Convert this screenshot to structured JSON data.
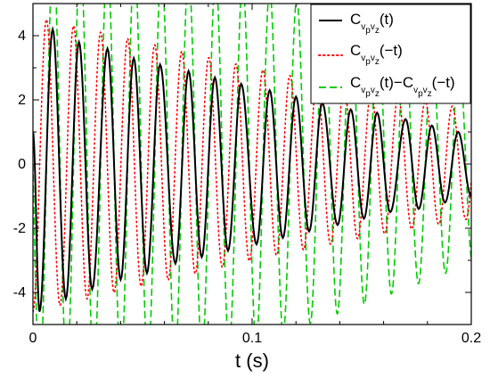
{
  "chart_data": {
    "type": "line",
    "xlabel": "t (s)",
    "ylabel": "",
    "xlim": [
      0,
      0.2
    ],
    "ylim": [
      -5,
      5
    ],
    "x_ticks": [
      0,
      0.1,
      0.2
    ],
    "x_tick_labels": [
      "0",
      "0.1",
      "0.2"
    ],
    "y_ticks": [
      -4,
      -2,
      0,
      2,
      4
    ],
    "y_tick_labels": [
      "-4",
      "-2",
      "0",
      "2",
      "4"
    ],
    "grid": false,
    "legend_position": "top-right",
    "legend": [
      {
        "main": "C",
        "sub": "v",
        "sub2": "p",
        "sub3": "v",
        "sub4": "z",
        "arg": "(t)"
      },
      {
        "main": "C",
        "sub": "v",
        "sub2": "p",
        "sub3": "v",
        "sub4": "z",
        "arg": "(−t)"
      },
      {
        "main": "C",
        "sub": "v",
        "sub2": "p",
        "sub3": "v",
        "sub4": "z",
        "arg": "(t)−C",
        "sub5": "v",
        "sub6": "p",
        "sub7": "v",
        "sub8": "z",
        "arg2": "(−t)"
      }
    ],
    "series": [
      {
        "style": "solid",
        "color": "#000000",
        "frequency_hz": 81,
        "phase": 0,
        "peak_t": [
          0.009,
          0.021,
          0.034,
          0.046,
          0.058,
          0.071,
          0.083,
          0.095,
          0.108,
          0.12,
          0.132,
          0.145,
          0.157,
          0.17,
          0.182,
          0.194
        ],
        "peak_y": [
          4.2,
          3.8,
          3.6,
          3.3,
          3.1,
          2.9,
          2.7,
          2.5,
          2.3,
          2.1,
          1.9,
          1.7,
          1.6,
          1.4,
          1.2,
          1.0
        ],
        "trough_t": [
          0.003,
          0.015,
          0.027,
          0.04,
          0.052,
          0.065,
          0.077,
          0.089,
          0.102,
          0.114,
          0.126,
          0.139,
          0.151,
          0.163,
          0.176,
          0.188,
          0.2
        ],
        "trough_y": [
          -4.6,
          -4.2,
          -3.9,
          -3.6,
          -3.4,
          -3.1,
          -2.9,
          -2.7,
          -2.5,
          -2.3,
          -2.1,
          -1.9,
          -1.7,
          -1.5,
          -1.4,
          -1.2,
          -1.0
        ]
      },
      {
        "style": "dotted",
        "color": "#ff0000",
        "frequency_hz": 81,
        "envelope_t": [
          0,
          0.05,
          0.1,
          0.15,
          0.2
        ],
        "envelope_amplitude": [
          4.6,
          3.8,
          3.0,
          2.3,
          1.7
        ],
        "phase_offset_cycles": 0.5
      },
      {
        "style": "dashed",
        "color": "#00cc00",
        "frequency_hz": 81,
        "envelope_t": [
          0,
          0.05,
          0.1,
          0.15,
          0.2
        ],
        "envelope_amplitude": [
          6.5,
          6.2,
          5.6,
          4.4,
          3.1
        ],
        "phase_offset_cycles": 0.25
      }
    ]
  },
  "axes_style": {
    "background": "#ffffff",
    "frame_color": "#000000"
  }
}
